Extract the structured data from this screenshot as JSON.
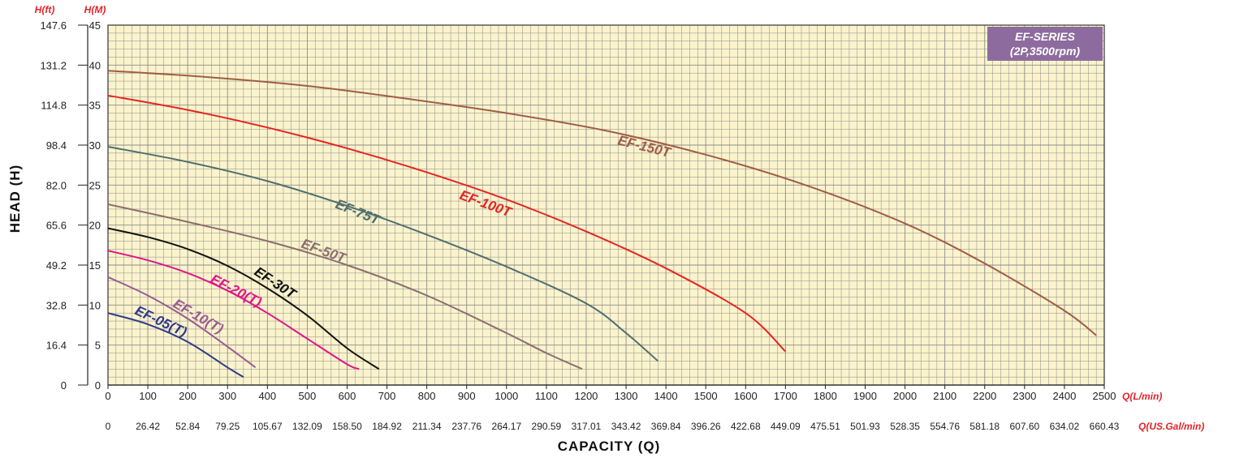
{
  "chart_data": {
    "type": "line",
    "title": "",
    "badge": {
      "line1": "EF-SERIES",
      "line2": "(2P,3500rpm)",
      "color": "#8e6b9e"
    },
    "xlabel": "CAPACITY  (Q)",
    "ylabel": "HEAD (H)",
    "x_unit": "Q(L/min)",
    "x2_unit": "Q(US.Gal/min)",
    "y_unit_ft": "H(ft)",
    "y_unit_m": "H(M)",
    "xlim": [
      0,
      2500
    ],
    "ylim": [
      0,
      45
    ],
    "grid": true,
    "plot_bg": "#faf3cc",
    "grid_color": "#8c8c8c",
    "x_ticks": [
      "0",
      "100",
      "200",
      "300",
      "400",
      "500",
      "600",
      "700",
      "800",
      "900",
      "1000",
      "1100",
      "1200",
      "1300",
      "1400",
      "1500",
      "1600",
      "1700",
      "1800",
      "1900",
      "2000",
      "2100",
      "2200",
      "2300",
      "2400",
      "2500"
    ],
    "x2_ticks": [
      "0",
      "26.42",
      "52.84",
      "79.25",
      "105.67",
      "132.09",
      "158.50",
      "184.92",
      "211.34",
      "237.76",
      "264.17",
      "290.59",
      "317.01",
      "343.42",
      "369.84",
      "396.26",
      "422.68",
      "449.09",
      "475.51",
      "501.93",
      "528.35",
      "554.76",
      "581.18",
      "607.60",
      "634.02",
      "660.43"
    ],
    "y_ticks_m": [
      "0",
      "5",
      "10",
      "15",
      "20",
      "25",
      "30",
      "35",
      "40",
      "45"
    ],
    "y_ticks_ft": [
      "0",
      "16.4",
      "32.8",
      "49.2",
      "65.6",
      "82.0",
      "98.4",
      "114.8",
      "131.2",
      "147.6"
    ],
    "series": [
      {
        "name": "EF-05(T)",
        "color": "#2e3a8c",
        "x": [
          0,
          100,
          200,
          300,
          340
        ],
        "y": [
          9.0,
          7.6,
          5.4,
          2.2,
          1.0
        ]
      },
      {
        "name": "EF-10(T)",
        "color": "#9a5a94",
        "x": [
          0,
          100,
          200,
          300,
          370
        ],
        "y": [
          13.5,
          11.2,
          8.3,
          4.8,
          2.2
        ]
      },
      {
        "name": "EF-20(T)",
        "color": "#e0168a",
        "x": [
          0,
          100,
          200,
          300,
          400,
          500,
          600,
          630
        ],
        "y": [
          16.8,
          15.6,
          14.0,
          11.8,
          9.0,
          5.8,
          2.6,
          2.0
        ]
      },
      {
        "name": "EF-30T",
        "color": "#111111",
        "x": [
          0,
          100,
          200,
          300,
          400,
          500,
          600,
          680
        ],
        "y": [
          19.6,
          18.5,
          17.0,
          14.9,
          12.1,
          8.7,
          4.6,
          2.0
        ]
      },
      {
        "name": "EF-50T",
        "color": "#8b6e6e",
        "x": [
          0,
          200,
          400,
          600,
          800,
          1000,
          1100,
          1190
        ],
        "y": [
          22.6,
          20.4,
          18.0,
          15.0,
          11.2,
          6.5,
          4.0,
          2.0
        ]
      },
      {
        "name": "EF-75T",
        "color": "#4f6e6e",
        "x": [
          0,
          200,
          400,
          600,
          800,
          1000,
          1200,
          1300,
          1380
        ],
        "y": [
          29.8,
          27.9,
          25.5,
          22.4,
          18.8,
          14.8,
          10.2,
          6.5,
          3.0
        ]
      },
      {
        "name": "EF-100T",
        "color": "#e62424",
        "x": [
          0,
          200,
          400,
          600,
          800,
          1000,
          1200,
          1400,
          1600,
          1700
        ],
        "y": [
          36.2,
          34.4,
          32.2,
          29.6,
          26.6,
          23.2,
          19.2,
          14.6,
          9.0,
          4.2
        ]
      },
      {
        "name": "EF-150T",
        "color": "#a05c48",
        "x": [
          0,
          250,
          500,
          750,
          1000,
          1250,
          1500,
          1750,
          2000,
          2200,
          2400,
          2480
        ],
        "y": [
          39.3,
          38.5,
          37.4,
          35.8,
          34.0,
          31.8,
          28.8,
          25.0,
          20.2,
          15.2,
          9.3,
          6.2
        ]
      }
    ]
  }
}
